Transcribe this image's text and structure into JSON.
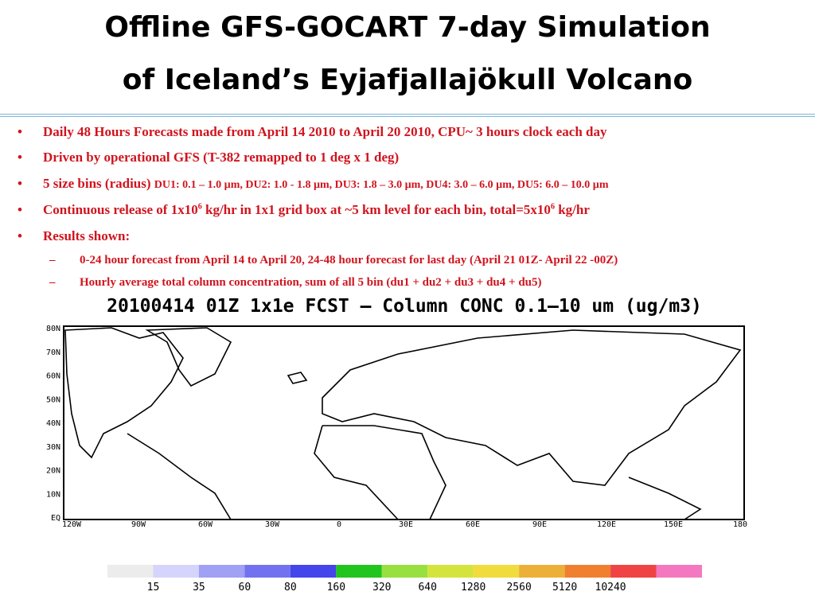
{
  "title": [
    "Offline GFS-GOCART 7-day Simulation",
    "of Iceland’s Eyjafjallajökull Volcano"
  ],
  "bullets": [
    "Daily 48 Hours Forecasts made from April 14 2010 to April 20 2010, CPU~ 3 hours clock each day",
    "Driven by operational GFS (T-382 remapped to 1 deg x 1 deg)"
  ],
  "bins": {
    "main": "5 size bins (radius)",
    "detail": "DU1: 0.1 – 1.0 µm, DU2: 1.0 - 1.8 µm, DU3: 1.8 – 3.0 µm, DU4: 3.0 – 6.0 µm, DU5: 6.0 – 10.0 µm"
  },
  "release": [
    "Continuous release of 1x10",
    "6",
    " kg/hr in 1x1 grid box at  ~5 km level for each bin, total=5x10",
    "6",
    " kg/hr"
  ],
  "results": "Results shown:",
  "sub_bullets": [
    "0-24 hour forecast from  April 14 to April 20, 24-48 hour forecast for last day (April 21 01Z- April 22 -00Z)",
    "Hourly average total column concentration, sum of all 5 bin (du1 + du2 + du3 + du4 + du5)"
  ],
  "figure": {
    "title": "20100414 01Z 1x1e FCST – Column CONC 0.1–10 um (ug/m3)",
    "lat_labels": [
      "80N",
      "70N",
      "60N",
      "50N",
      "40N",
      "30N",
      "20N",
      "10N",
      "EQ"
    ],
    "lon_labels": [
      "120W",
      "90W",
      "60W",
      "30W",
      "0",
      "30E",
      "60E",
      "90E",
      "120E",
      "150E",
      "180"
    ],
    "colorbar": {
      "colors": [
        "#ececec",
        "#d4d4fc",
        "#a0a0f4",
        "#7272f0",
        "#4545ec",
        "#22c41e",
        "#98e040",
        "#d4e43c",
        "#f0dc3c",
        "#ecb038",
        "#f08030",
        "#f04444",
        "#f478c0"
      ],
      "labels": [
        "15",
        "35",
        "60",
        "80",
        "160",
        "320",
        "640",
        "1280",
        "2560",
        "5120",
        "10240"
      ]
    }
  }
}
